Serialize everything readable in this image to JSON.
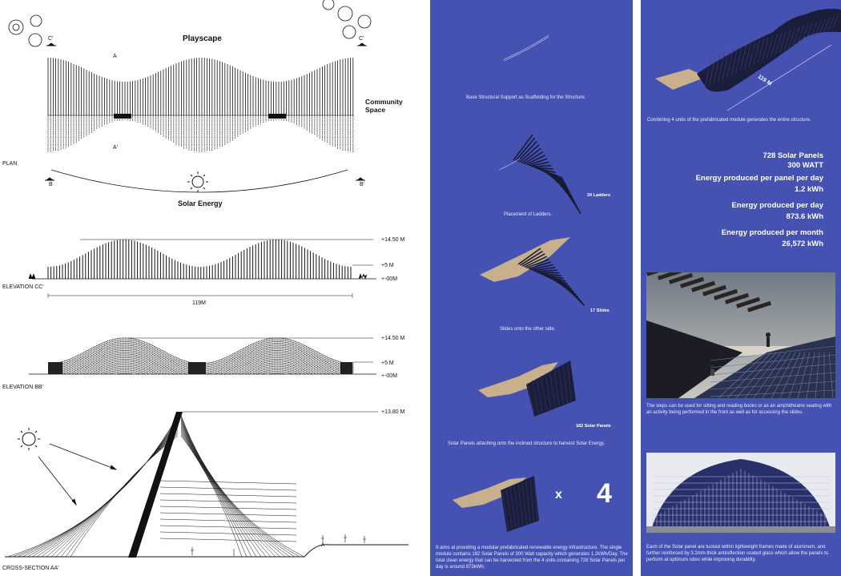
{
  "left": {
    "plan": {
      "title": "Playscape",
      "community_label_1": "Community",
      "community_label_2": "Space",
      "section_marks": {
        "c_left": "C'",
        "c_right": "C'",
        "a_top": "A",
        "a_bottom": "A'",
        "b_left": "B",
        "b_right": "B'"
      },
      "label": "PLAN",
      "sun_caption": "Solar Energy"
    },
    "elevation_cc": {
      "label": "ELEVATION CC'",
      "levels": [
        "+14.50 M",
        "+5 M",
        "+-00M"
      ],
      "dimension": "119M"
    },
    "elevation_bb": {
      "label": "ELEVATION BB'",
      "levels": [
        "+14.50 M",
        "+5 M",
        "+-00M"
      ]
    },
    "cross_section": {
      "label": "CROSS-SECTION AA'",
      "level": "+13.80 M"
    }
  },
  "middle": {
    "step1": {
      "caption": "Base Structural Support as Scaffolding for the Structure."
    },
    "step2": {
      "count": "34 Ladders",
      "caption": "Placement of Ladders."
    },
    "step3": {
      "count": "17 Slides",
      "caption": "Slides onto the other side."
    },
    "step4": {
      "count": "182 Solar Panels",
      "caption": "Solar Panels attaching onto the inclined structure to harvest Solar Energy."
    },
    "multiplier": {
      "x": "x",
      "n": "4"
    },
    "paragraph": "It aims at providing a modular prefabricated renewable energy infrastructure. The single module contains 182 Solar Panels of 300 Watt capacity which generates 1.2kWh/Day. The total clean energy that can be harvested from the 4 units containing 728 Solar Panels per day is around 873kWh."
  },
  "right": {
    "length": "119 M",
    "combine_caption": "Combining 4 units of the prefabricated module generates the entire structure.",
    "stats": {
      "panels": "728 Solar Panels",
      "watt": "300 WATT",
      "per_panel_label": "Energy produced per panel per day",
      "per_panel_value": "1.2 kWh",
      "per_day_label": "Energy produced per day",
      "per_day_value": "873.6 kWh",
      "per_month_label": "Energy produced per month",
      "per_month_value": "26,572  kWh"
    },
    "render_caption": "The steps can be used for sitting and reading books or as an amphitheatre seating with an activity being performed in the front as well as for accessing the slides.",
    "panel_caption": "Each of the Solar panel are tucked within lightweight frames made of aluminum, and further reinforced by 3.2mm thick antireflection coated glass which allow the panels to perform at optimum rates while improving durability."
  },
  "colors": {
    "panel_bg": "#4652b2",
    "wood": "#c9b08c",
    "ink": "#111111"
  }
}
